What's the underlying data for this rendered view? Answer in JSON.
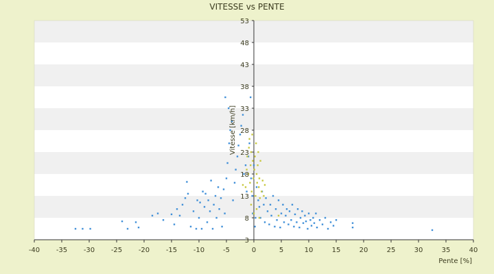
{
  "chart_data": {
    "type": "scatter",
    "title": "VITESSE vs PENTE",
    "xlabel": "Pente [%]",
    "ylabel": "Vitesse [km/h]",
    "xlim": [
      -40,
      40
    ],
    "ylim": [
      3,
      53
    ],
    "x_ticks": [
      -40,
      -35,
      -30,
      -25,
      -20,
      -15,
      -10,
      -5,
      0,
      5,
      10,
      15,
      20,
      25,
      30,
      35,
      40
    ],
    "y_ticks": [
      3,
      8,
      13,
      18,
      23,
      28,
      33,
      38,
      43,
      48,
      53
    ],
    "grid": "horizontal alternating bands",
    "colors": {
      "page_background": "#eef2cc",
      "band_light": "#ffffff",
      "band_grey": "#f0f0f0",
      "series_blue": "#3f8fd8",
      "series_yellow": "#c8c840",
      "text": "#3b3b1f"
    },
    "series": [
      {
        "color": "#3f8fd8",
        "points": [
          [
            -32.5,
            5.5
          ],
          [
            -31.2,
            5.5
          ],
          [
            -29.8,
            5.5
          ],
          [
            -24,
            7.2
          ],
          [
            -23,
            5.5
          ],
          [
            -21.5,
            7
          ],
          [
            -21,
            5.8
          ],
          [
            -18.5,
            8.5
          ],
          [
            -17.5,
            9
          ],
          [
            -16.5,
            7.5
          ],
          [
            -15,
            8.8
          ],
          [
            -14.5,
            6.5
          ],
          [
            -14,
            10
          ],
          [
            -13.5,
            8.5
          ],
          [
            -13,
            11
          ],
          [
            -12.5,
            12.5
          ],
          [
            -12,
            13.5
          ],
          [
            -12.2,
            16.2
          ],
          [
            -11.5,
            6
          ],
          [
            -11,
            9.5
          ],
          [
            -10.5,
            5.5
          ],
          [
            -10.3,
            12
          ],
          [
            -10,
            8
          ],
          [
            -9.8,
            11.5
          ],
          [
            -9.5,
            5.5
          ],
          [
            -9.3,
            14
          ],
          [
            -9,
            10.5
          ],
          [
            -8.8,
            13.5
          ],
          [
            -8.5,
            7
          ],
          [
            -8.3,
            12
          ],
          [
            -8,
            9.5
          ],
          [
            -7.8,
            16.5
          ],
          [
            -7.5,
            5.5
          ],
          [
            -7.3,
            11
          ],
          [
            -7,
            13
          ],
          [
            -6.8,
            8
          ],
          [
            -6.5,
            15
          ],
          [
            -6.3,
            10
          ],
          [
            -6,
            12.5
          ],
          [
            -5.8,
            6
          ],
          [
            -5.5,
            14.5
          ],
          [
            -5.3,
            9
          ],
          [
            -5,
            17
          ],
          [
            -4.8,
            20.5
          ],
          [
            -4.5,
            25
          ],
          [
            -4.3,
            28
          ],
          [
            -4,
            30
          ],
          [
            -4.6,
            33
          ],
          [
            -5.2,
            35.5
          ],
          [
            -3.8,
            12
          ],
          [
            -3.5,
            16
          ],
          [
            -3.3,
            19
          ],
          [
            -3,
            22
          ],
          [
            -2.8,
            24.5
          ],
          [
            -2.5,
            27
          ],
          [
            -2.3,
            29
          ],
          [
            -2,
            31.5
          ],
          [
            -1.8,
            18
          ],
          [
            -1.5,
            20
          ],
          [
            -1.3,
            14
          ],
          [
            -1,
            22
          ],
          [
            -0.8,
            25
          ],
          [
            -0.6,
            35.5
          ],
          [
            -0.5,
            17
          ],
          [
            -0.3,
            13
          ],
          [
            -0.2,
            9
          ],
          [
            0,
            20
          ],
          [
            0.2,
            6
          ],
          [
            0.3,
            8
          ],
          [
            0.5,
            15
          ],
          [
            0.8,
            12
          ],
          [
            1,
            10.5
          ],
          [
            1.2,
            8
          ],
          [
            1.5,
            14
          ],
          [
            1.8,
            11
          ],
          [
            2,
            7
          ],
          [
            2.2,
            12.5
          ],
          [
            2.5,
            9.5
          ],
          [
            2.8,
            6.5
          ],
          [
            3,
            11
          ],
          [
            3.2,
            8.5
          ],
          [
            3.5,
            13
          ],
          [
            3.8,
            6
          ],
          [
            4,
            10
          ],
          [
            4.2,
            7.5
          ],
          [
            4.5,
            12
          ],
          [
            4.8,
            5.8
          ],
          [
            5,
            9
          ],
          [
            5.3,
            11
          ],
          [
            5.5,
            7
          ],
          [
            5.8,
            8.5
          ],
          [
            6,
            10
          ],
          [
            6.3,
            6.5
          ],
          [
            6.5,
            9.5
          ],
          [
            6.8,
            7.5
          ],
          [
            7,
            11
          ],
          [
            7.3,
            6
          ],
          [
            7.5,
            8.8
          ],
          [
            7.8,
            7
          ],
          [
            8,
            10
          ],
          [
            8.3,
            5.8
          ],
          [
            8.5,
            8
          ],
          [
            8.8,
            9.5
          ],
          [
            9,
            6.8
          ],
          [
            9.3,
            8.5
          ],
          [
            9.5,
            7.2
          ],
          [
            9.8,
            5.5
          ],
          [
            10,
            9
          ],
          [
            10.3,
            7.5
          ],
          [
            10.5,
            6.2
          ],
          [
            10.8,
            8
          ],
          [
            11,
            6.8
          ],
          [
            11.3,
            9
          ],
          [
            11.5,
            5.8
          ],
          [
            12,
            7.5
          ],
          [
            12.5,
            6.5
          ],
          [
            13,
            8
          ],
          [
            13.5,
            5.5
          ],
          [
            14,
            7
          ],
          [
            14.5,
            6.2
          ],
          [
            15,
            7.5
          ],
          [
            18,
            5.8
          ],
          [
            18,
            6.8
          ],
          [
            32.5,
            5.2
          ]
        ]
      },
      {
        "color": "#c8c840",
        "points": [
          [
            -1.5,
            15
          ],
          [
            -1.3,
            19
          ],
          [
            -1.2,
            22
          ],
          [
            -1,
            18
          ],
          [
            -0.9,
            24
          ],
          [
            -0.8,
            26
          ],
          [
            -0.7,
            16
          ],
          [
            -0.6,
            20
          ],
          [
            -0.5,
            23
          ],
          [
            -0.4,
            14
          ],
          [
            -0.3,
            27
          ],
          [
            -0.2,
            21
          ],
          [
            -0.1,
            17
          ],
          [
            0.1,
            19
          ],
          [
            0.2,
            22
          ],
          [
            0.3,
            13
          ],
          [
            0.4,
            25
          ],
          [
            0.5,
            18
          ],
          [
            0.6,
            16
          ],
          [
            0.7,
            20
          ],
          [
            0.8,
            23
          ],
          [
            0.9,
            15
          ],
          [
            1,
            17
          ],
          [
            1.1,
            12.5
          ],
          [
            1.2,
            21
          ],
          [
            1.4,
            14
          ],
          [
            1.6,
            16.5
          ],
          [
            1.8,
            13
          ],
          [
            2,
            15.5
          ],
          [
            0,
            9
          ],
          [
            -0.5,
            11
          ],
          [
            0.5,
            10
          ],
          [
            1,
            8
          ],
          [
            4.5,
            8.5
          ],
          [
            -2,
            15.5
          ]
        ]
      }
    ]
  }
}
